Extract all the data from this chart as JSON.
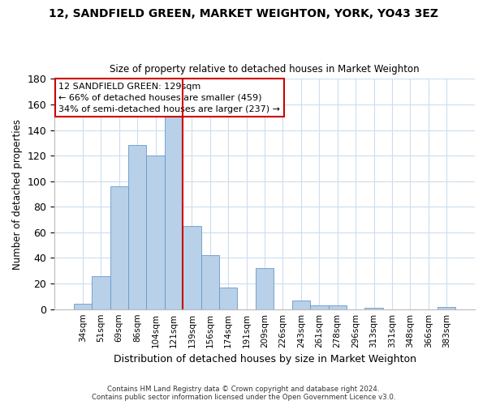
{
  "title1": "12, SANDFIELD GREEN, MARKET WEIGHTON, YORK, YO43 3EZ",
  "title2": "Size of property relative to detached houses in Market Weighton",
  "xlabel": "Distribution of detached houses by size in Market Weighton",
  "ylabel": "Number of detached properties",
  "categories": [
    "34sqm",
    "51sqm",
    "69sqm",
    "86sqm",
    "104sqm",
    "121sqm",
    "139sqm",
    "156sqm",
    "174sqm",
    "191sqm",
    "209sqm",
    "226sqm",
    "243sqm",
    "261sqm",
    "278sqm",
    "296sqm",
    "313sqm",
    "331sqm",
    "348sqm",
    "366sqm",
    "383sqm"
  ],
  "values": [
    4,
    26,
    96,
    128,
    120,
    151,
    65,
    42,
    17,
    0,
    32,
    0,
    7,
    3,
    3,
    0,
    1,
    0,
    0,
    0,
    2
  ],
  "bar_color": "#b8d0e8",
  "bar_edge_color": "#6699cc",
  "grid_color": "#ccddee",
  "annotation_box_color": "#cc0000",
  "vline_color": "#cc0000",
  "vline_x": 5.5,
  "annotation_text_line1": "12 SANDFIELD GREEN: 129sqm",
  "annotation_text_line2": "← 66% of detached houses are smaller (459)",
  "annotation_text_line3": "34% of semi-detached houses are larger (237) →",
  "footer1": "Contains HM Land Registry data © Crown copyright and database right 2024.",
  "footer2": "Contains public sector information licensed under the Open Government Licence v3.0.",
  "ylim": [
    0,
    180
  ],
  "yticks": [
    0,
    20,
    40,
    60,
    80,
    100,
    120,
    140,
    160,
    180
  ],
  "bg_color": "#ffffff"
}
